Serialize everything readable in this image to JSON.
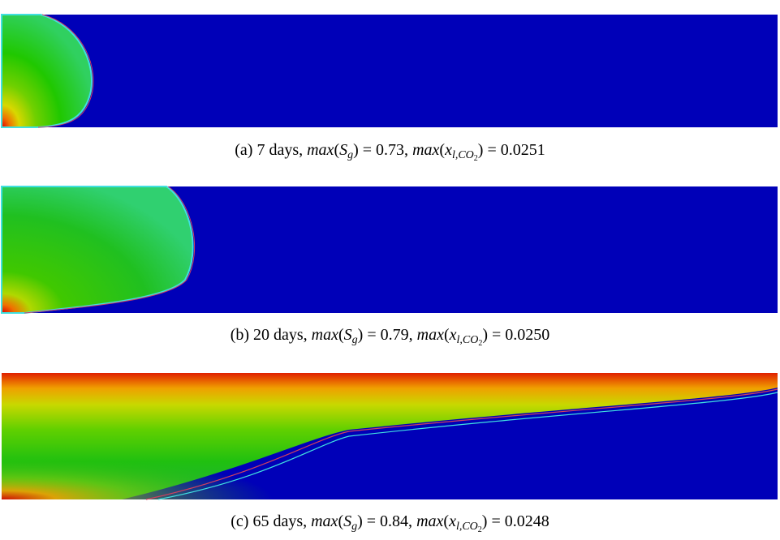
{
  "panels": [
    {
      "caption": [
        {
          "text": "(a) 7 days, ",
          "style": "normal"
        },
        {
          "text": "max",
          "style": "italic"
        },
        {
          "text": "(",
          "style": "normal"
        },
        {
          "text": "S",
          "style": "italic"
        },
        {
          "text": "g",
          "style": "sub"
        },
        {
          "text": ") = 0.73, ",
          "style": "normal"
        },
        {
          "text": "max",
          "style": "italic"
        },
        {
          "text": "(",
          "style": "normal"
        },
        {
          "text": "x",
          "style": "italic"
        },
        {
          "text": "l,CO",
          "style": "sub"
        },
        {
          "text": "2",
          "style": "subsub"
        },
        {
          "text": ") = 0.0251",
          "style": "normal"
        }
      ]
    },
    {
      "caption": [
        {
          "text": "(b) 20 days, ",
          "style": "normal"
        },
        {
          "text": "max",
          "style": "italic"
        },
        {
          "text": "(",
          "style": "normal"
        },
        {
          "text": "S",
          "style": "italic"
        },
        {
          "text": "g",
          "style": "sub"
        },
        {
          "text": ") = 0.79, ",
          "style": "normal"
        },
        {
          "text": "max",
          "style": "italic"
        },
        {
          "text": "(",
          "style": "normal"
        },
        {
          "text": "x",
          "style": "italic"
        },
        {
          "text": "l,CO",
          "style": "sub"
        },
        {
          "text": "2",
          "style": "subsub"
        },
        {
          "text": ") = 0.0250",
          "style": "normal"
        }
      ]
    },
    {
      "caption": [
        {
          "text": "(c) 65 days, ",
          "style": "normal"
        },
        {
          "text": "max",
          "style": "italic"
        },
        {
          "text": "(",
          "style": "normal"
        },
        {
          "text": "S",
          "style": "italic"
        },
        {
          "text": "g",
          "style": "sub"
        },
        {
          "text": ") = 0.84, ",
          "style": "normal"
        },
        {
          "text": "max",
          "style": "italic"
        },
        {
          "text": "(",
          "style": "normal"
        },
        {
          "text": "x",
          "style": "italic"
        },
        {
          "text": "l,CO",
          "style": "sub"
        },
        {
          "text": "2",
          "style": "subsub"
        },
        {
          "text": ") = 0.0248",
          "style": "normal"
        }
      ]
    }
  ]
}
